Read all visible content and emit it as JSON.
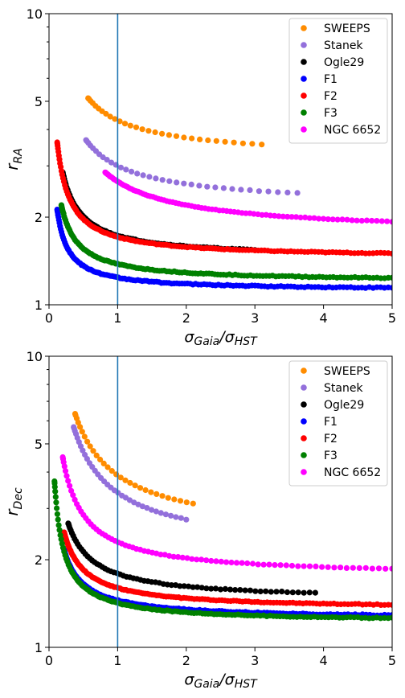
{
  "chart_data": [
    {
      "type": "scatter",
      "xlabel": "σGaia/σHST",
      "ylabel": "rRA",
      "xlabel_parts": {
        "main": "σ",
        "sub1": "Gaia",
        "slash": "/σ",
        "sub2": "HST"
      },
      "ylabel_parts": {
        "main": "r",
        "sub": "RA"
      },
      "xlim": [
        0,
        5
      ],
      "ylim": [
        1,
        10
      ],
      "yscale": "log",
      "xticks": [
        "0",
        "1",
        "2",
        "3",
        "4",
        "5"
      ],
      "yticks": [
        "1",
        "2",
        "5",
        "10"
      ],
      "vline_x": 1,
      "legend_position": "top-right",
      "series": [
        {
          "name": "SWEEPS",
          "color": "#ff8c00",
          "asymptote": 3.2,
          "coef": 1.1,
          "xmin": 0.57,
          "xmax": 3.1,
          "n": 30
        },
        {
          "name": "Stanek",
          "color": "#9370db",
          "asymptote": 2.2,
          "coef": 0.8,
          "xmin": 0.54,
          "xmax": 3.62,
          "n": 35
        },
        {
          "name": "Ogle29",
          "color": "#000000",
          "asymptote": 1.45,
          "coef": 0.28,
          "xmin": 0.2,
          "xmax": 3.0,
          "n": 80
        },
        {
          "name": "F1",
          "color": "#0000ff",
          "asymptote": 1.12,
          "coef": 0.12,
          "xmin": 0.12,
          "xmax": 5.0,
          "n": 140
        },
        {
          "name": "F2",
          "color": "#ff0000",
          "asymptote": 1.45,
          "coef": 0.26,
          "xmin": 0.12,
          "xmax": 5.0,
          "n": 140
        },
        {
          "name": "F3",
          "color": "#008000",
          "asymptote": 1.2,
          "coef": 0.18,
          "xmin": 0.18,
          "xmax": 5.0,
          "n": 140
        },
        {
          "name": "NGC 6652",
          "color": "#ff00ff",
          "asymptote": 1.75,
          "coef": 0.9,
          "xmin": 0.82,
          "xmax": 5.0,
          "n": 90
        }
      ]
    },
    {
      "type": "scatter",
      "xlabel": "σGaia/σHST",
      "ylabel": "rDec",
      "xlabel_parts": {
        "main": "σ",
        "sub1": "Gaia",
        "slash": "/σ",
        "sub2": "HST"
      },
      "ylabel_parts": {
        "main": "r",
        "sub": "Dec"
      },
      "xlim": [
        0,
        5
      ],
      "ylim": [
        1,
        10
      ],
      "yscale": "log",
      "xticks": [
        "0",
        "1",
        "2",
        "3",
        "4",
        "5"
      ],
      "yticks": [
        "1",
        "2",
        "5",
        "10"
      ],
      "vline_x": 1,
      "legend_position": "top-right",
      "series": [
        {
          "name": "SWEEPS",
          "color": "#ff8c00",
          "asymptote": 2.4,
          "coef": 1.5,
          "xmin": 0.38,
          "xmax": 2.1,
          "n": 30
        },
        {
          "name": "Stanek",
          "color": "#9370db",
          "asymptote": 2.1,
          "coef": 1.3,
          "xmin": 0.36,
          "xmax": 2.0,
          "n": 35
        },
        {
          "name": "Ogle29",
          "color": "#000000",
          "asymptote": 1.45,
          "coef": 0.34,
          "xmin": 0.28,
          "xmax": 3.88,
          "n": 70
        },
        {
          "name": "F1",
          "color": "#0000ff",
          "asymptote": 1.25,
          "coef": 0.2,
          "xmin": 0.22,
          "xmax": 5.0,
          "n": 140
        },
        {
          "name": "F2",
          "color": "#ff0000",
          "asymptote": 1.35,
          "coef": 0.25,
          "xmin": 0.22,
          "xmax": 5.0,
          "n": 140
        },
        {
          "name": "F3",
          "color": "#008000",
          "asymptote": 1.22,
          "coef": 0.2,
          "xmin": 0.08,
          "xmax": 5.0,
          "n": 140
        },
        {
          "name": "NGC 6652",
          "color": "#ff00ff",
          "asymptote": 1.75,
          "coef": 0.55,
          "xmin": 0.2,
          "xmax": 5.0,
          "n": 80
        }
      ]
    }
  ]
}
